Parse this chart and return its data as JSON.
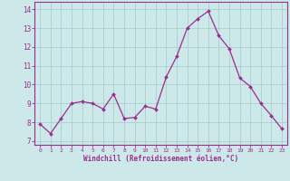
{
  "x": [
    0,
    1,
    2,
    3,
    4,
    5,
    6,
    7,
    8,
    9,
    10,
    11,
    12,
    13,
    14,
    15,
    16,
    17,
    18,
    19,
    20,
    21,
    22,
    23
  ],
  "y": [
    7.9,
    7.4,
    8.2,
    9.0,
    9.1,
    9.0,
    8.7,
    9.5,
    8.2,
    8.25,
    8.85,
    8.7,
    10.4,
    11.5,
    13.0,
    13.5,
    13.9,
    12.6,
    11.9,
    10.35,
    9.9,
    9.0,
    8.35,
    7.65
  ],
  "line_color": "#9b2d8e",
  "marker": "D",
  "marker_size": 2.0,
  "bg_color": "#cce8e8",
  "grid_color": "#aacece",
  "xlabel": "Windchill (Refroidissement éolien,°C)",
  "ylabel_ticks": [
    7,
    8,
    9,
    10,
    11,
    12,
    13,
    14
  ],
  "xtick_labels": [
    "0",
    "1",
    "2",
    "3",
    "4",
    "5",
    "6",
    "7",
    "8",
    "9",
    "10",
    "11",
    "12",
    "13",
    "14",
    "15",
    "16",
    "17",
    "18",
    "19",
    "20",
    "21",
    "22",
    "23"
  ],
  "ylim": [
    6.8,
    14.4
  ],
  "xlim": [
    -0.5,
    23.5
  ],
  "axis_color": "#9b2d8e",
  "tick_color": "#9b2d8e"
}
